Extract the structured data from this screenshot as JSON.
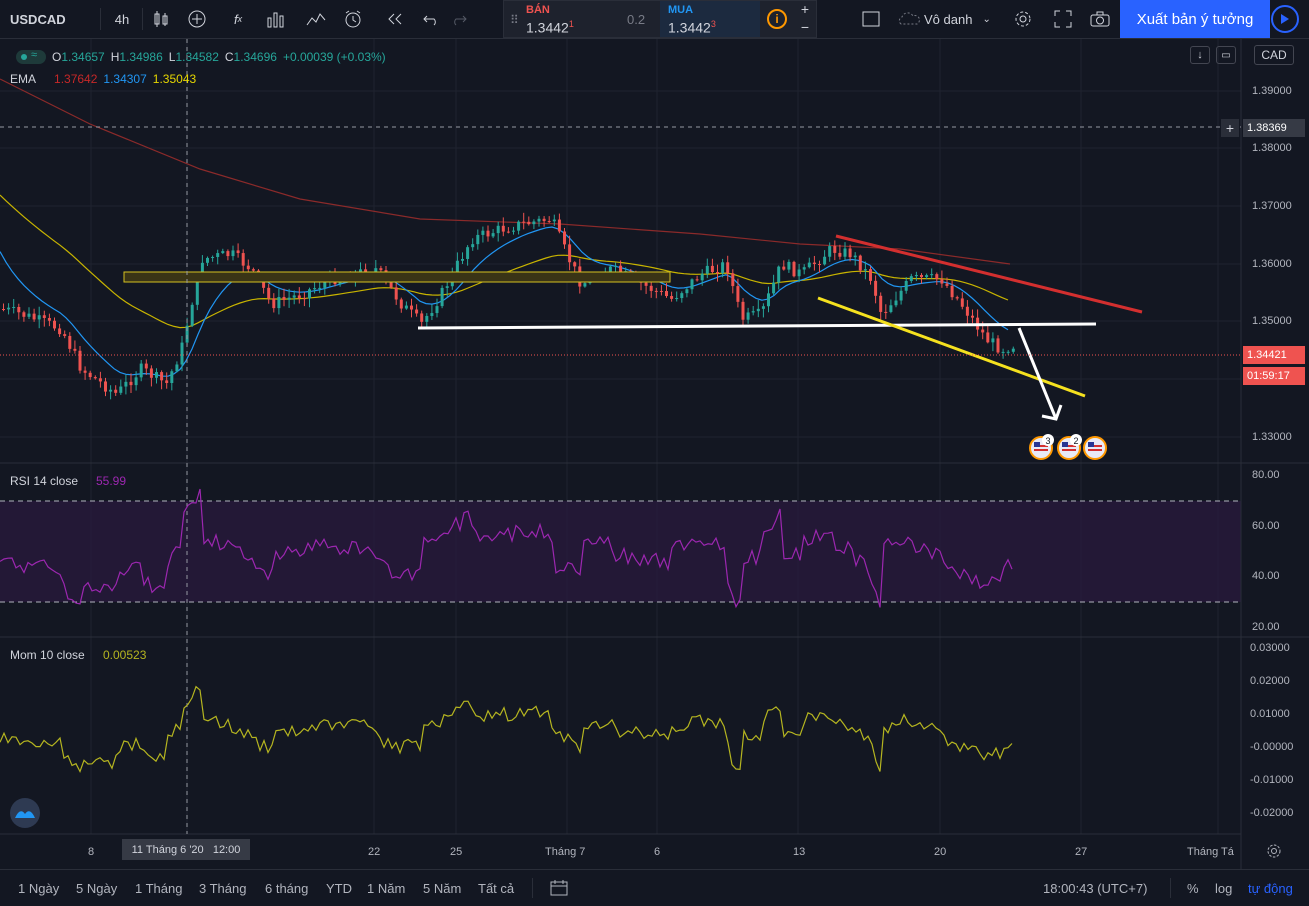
{
  "toolbar": {
    "symbol": "USDCAD",
    "interval": "4h",
    "sell_label": "BÁN",
    "sell_price": "1.3442",
    "sell_sup": "1",
    "spread": "0.2",
    "buy_label": "MUA",
    "buy_price": "1.3442",
    "buy_sup": "3",
    "plus": "+",
    "minus": "−",
    "layout_name": "Vô danh",
    "publish_label": "Xuất bản ý tưởng"
  },
  "legend": {
    "o_label": "O",
    "o": "1.34657",
    "h_label": "H",
    "h": "1.34986",
    "l_label": "L",
    "l": "1.34582",
    "c_label": "C",
    "c": "1.34696",
    "change": "+0.00039 (+0.03%)",
    "ema_label": "EMA",
    "ema1": "1.37642",
    "ema2": "1.34307",
    "ema3": "1.35043"
  },
  "currency": "CAD",
  "price_axis": [
    "1.39000",
    "1.38000",
    "1.37000",
    "1.36000",
    "1.35000",
    "1.33000"
  ],
  "crosshair_price": "1.38369",
  "last_price": "1.34421",
  "countdown": "01:59:17",
  "rsi": {
    "label": "RSI 14 close",
    "value": "55.99",
    "axis": [
      "80.00",
      "60.00",
      "40.00",
      "20.00"
    ]
  },
  "mom": {
    "label": "Mom 10 close",
    "value": "0.00523",
    "axis": [
      "0.03000",
      "0.02000",
      "0.01000",
      "-0.00000",
      "-0.01000",
      "-0.02000"
    ]
  },
  "time_axis": [
    "8",
    "22",
    "25",
    "Tháng 7",
    "6",
    "13",
    "20",
    "27",
    "Tháng Tá"
  ],
  "crosshair_time": "11 Tháng 6 '20   12:00",
  "event_badges": [
    "3",
    "2"
  ],
  "ranges": [
    "1 Ngày",
    "5 Ngày",
    "1 Tháng",
    "3 Tháng",
    "6 tháng",
    "YTD",
    "1 Năm",
    "5 Năm",
    "Tất cả"
  ],
  "clock": "18:00:43 (UTC+7)",
  "scale_opts": [
    "%",
    "log",
    "tự động"
  ],
  "colors": {
    "up": "#26a69a",
    "down": "#ef5350",
    "accent": "#2962ff",
    "ema_long": "#8b2a2a",
    "ema_short": "#2196f3",
    "ema_mid": "#c8b400",
    "rsi": "#9c27b0",
    "mom": "#b5b520"
  }
}
